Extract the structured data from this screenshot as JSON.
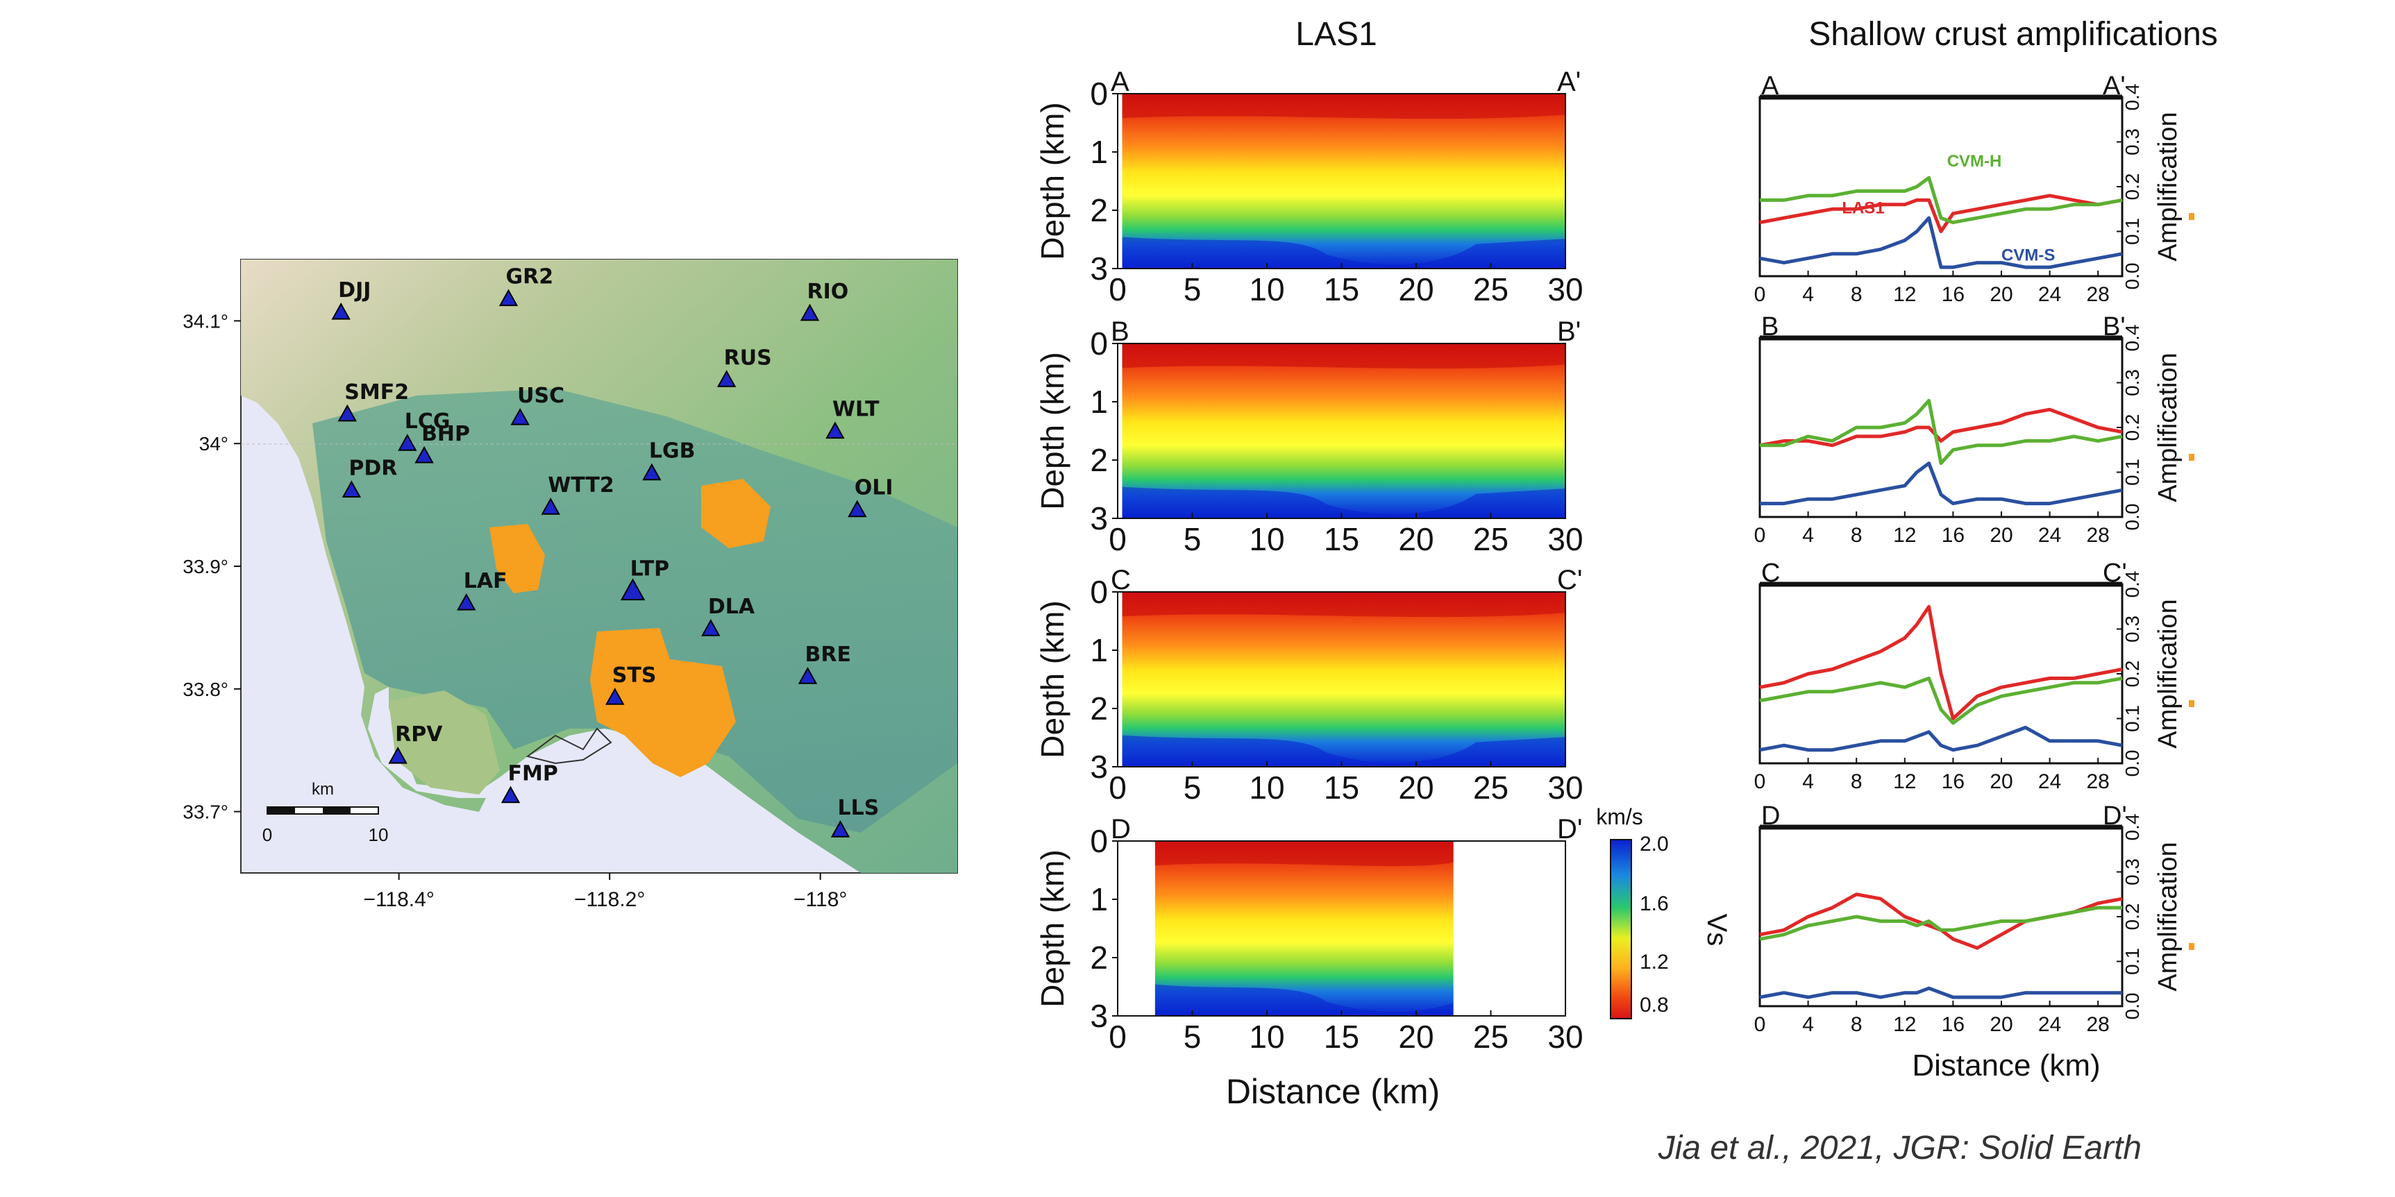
{
  "map": {
    "lat_ticks": [
      "34.1°",
      "34°",
      "33.9°",
      "33.8°",
      "33.7°"
    ],
    "lon_ticks": [
      "−118.4°",
      "−118.2°",
      "−118°"
    ],
    "scale_unit": "km",
    "scale_labels": [
      "0",
      "10"
    ],
    "stations": [
      {
        "name": "DJJ",
        "lon": -118.455,
        "lat": 34.107
      },
      {
        "name": "GR2",
        "lon": -118.296,
        "lat": 34.118
      },
      {
        "name": "RIO",
        "lon": -118.01,
        "lat": 34.106
      },
      {
        "name": "RUS",
        "lon": -118.089,
        "lat": 34.052
      },
      {
        "name": "SMF2",
        "lon": -118.449,
        "lat": 34.024
      },
      {
        "name": "LCG",
        "lon": -118.392,
        "lat": 34.0
      },
      {
        "name": "USC",
        "lon": -118.285,
        "lat": 34.021
      },
      {
        "name": "WLT",
        "lon": -117.986,
        "lat": 34.01
      },
      {
        "name": "BHP",
        "lon": -118.376,
        "lat": 33.99
      },
      {
        "name": "PDR",
        "lon": -118.445,
        "lat": 33.962
      },
      {
        "name": "LGB",
        "lon": -118.16,
        "lat": 33.976
      },
      {
        "name": "WTT2",
        "lon": -118.256,
        "lat": 33.948
      },
      {
        "name": "OLI",
        "lon": -117.965,
        "lat": 33.946
      },
      {
        "name": "LTP",
        "lon": -118.178,
        "lat": 33.88
      },
      {
        "name": "LAF",
        "lon": -118.336,
        "lat": 33.87
      },
      {
        "name": "DLA",
        "lon": -118.104,
        "lat": 33.849
      },
      {
        "name": "BRE",
        "lon": -118.012,
        "lat": 33.81
      },
      {
        "name": "STS",
        "lon": -118.195,
        "lat": 33.793
      },
      {
        "name": "RPV",
        "lon": -118.401,
        "lat": 33.745
      },
      {
        "name": "FMP",
        "lon": -118.294,
        "lat": 33.713
      },
      {
        "name": "LLS",
        "lon": -117.981,
        "lat": 33.685
      }
    ]
  },
  "sections": {
    "title": "LAS1",
    "ylabel": "Depth (km)",
    "xlabel": "Distance (km)",
    "xticks": [
      "0",
      "5",
      "10",
      "15",
      "20",
      "25",
      "30"
    ],
    "yticks": [
      "0",
      "1",
      "2",
      "3"
    ],
    "panels": [
      {
        "left": "A",
        "right": "A'"
      },
      {
        "left": "B",
        "right": "B'"
      },
      {
        "left": "C",
        "right": "C'"
      },
      {
        "left": "D",
        "right": "D'"
      }
    ]
  },
  "colorbar": {
    "unit": "km/s",
    "label": "Vs",
    "ticks": [
      "2.0",
      "1.6",
      "1.2",
      "0.8"
    ]
  },
  "amplification": {
    "title": "Shallow crust amplifications",
    "ylabel": "Amplification",
    "xlabel": "Distance (km)",
    "xticks": [
      "0",
      "4",
      "8",
      "12",
      "16",
      "20",
      "24",
      "28"
    ],
    "yticks": [
      "0.0",
      "0.1",
      "0.2",
      "0.3",
      "0.4"
    ],
    "colors": {
      "LAS1": "#e02828",
      "CVM-H": "#5cb032",
      "CVM-S": "#2a4fa0"
    },
    "legend": [
      "CVM-H",
      "LAS1",
      "CVM-S"
    ]
  },
  "chart_data": [
    {
      "type": "line",
      "panel": "A",
      "x": [
        0,
        2,
        4,
        6,
        8,
        10,
        12,
        13,
        14,
        15,
        16,
        18,
        20,
        22,
        24,
        26,
        28,
        30
      ],
      "series": [
        {
          "name": "LAS1",
          "values": [
            0.12,
            0.13,
            0.14,
            0.15,
            0.15,
            0.16,
            0.16,
            0.17,
            0.17,
            0.1,
            0.14,
            0.15,
            0.16,
            0.17,
            0.18,
            0.17,
            0.16,
            0.17
          ]
        },
        {
          "name": "CVM-H",
          "values": [
            0.17,
            0.17,
            0.18,
            0.18,
            0.19,
            0.19,
            0.19,
            0.2,
            0.22,
            0.13,
            0.12,
            0.13,
            0.14,
            0.15,
            0.15,
            0.16,
            0.16,
            0.17
          ]
        },
        {
          "name": "CVM-S",
          "values": [
            0.04,
            0.03,
            0.04,
            0.05,
            0.05,
            0.06,
            0.08,
            0.1,
            0.13,
            0.02,
            0.02,
            0.03,
            0.03,
            0.02,
            0.02,
            0.03,
            0.04,
            0.05
          ]
        }
      ],
      "xlim": [
        0,
        30
      ],
      "ylim": [
        0,
        0.4
      ]
    },
    {
      "type": "line",
      "panel": "B",
      "x": [
        0,
        2,
        4,
        6,
        8,
        10,
        12,
        13,
        14,
        15,
        16,
        18,
        20,
        22,
        24,
        26,
        28,
        30
      ],
      "series": [
        {
          "name": "LAS1",
          "values": [
            0.16,
            0.17,
            0.17,
            0.16,
            0.18,
            0.18,
            0.19,
            0.2,
            0.2,
            0.17,
            0.19,
            0.2,
            0.21,
            0.23,
            0.24,
            0.22,
            0.2,
            0.19
          ]
        },
        {
          "name": "CVM-H",
          "values": [
            0.16,
            0.16,
            0.18,
            0.17,
            0.2,
            0.2,
            0.21,
            0.23,
            0.26,
            0.12,
            0.15,
            0.16,
            0.16,
            0.17,
            0.17,
            0.18,
            0.17,
            0.18
          ]
        },
        {
          "name": "CVM-S",
          "values": [
            0.03,
            0.03,
            0.04,
            0.04,
            0.05,
            0.06,
            0.07,
            0.1,
            0.12,
            0.05,
            0.03,
            0.04,
            0.04,
            0.03,
            0.03,
            0.04,
            0.05,
            0.06
          ]
        }
      ],
      "xlim": [
        0,
        30
      ],
      "ylim": [
        0,
        0.4
      ]
    },
    {
      "type": "line",
      "panel": "C",
      "x": [
        0,
        2,
        4,
        6,
        8,
        10,
        12,
        13,
        14,
        15,
        16,
        18,
        20,
        22,
        24,
        26,
        28,
        30
      ],
      "series": [
        {
          "name": "LAS1",
          "values": [
            0.17,
            0.18,
            0.2,
            0.21,
            0.23,
            0.25,
            0.28,
            0.31,
            0.35,
            0.2,
            0.1,
            0.15,
            0.17,
            0.18,
            0.19,
            0.19,
            0.2,
            0.21
          ]
        },
        {
          "name": "CVM-H",
          "values": [
            0.14,
            0.15,
            0.16,
            0.16,
            0.17,
            0.18,
            0.17,
            0.18,
            0.19,
            0.12,
            0.09,
            0.13,
            0.15,
            0.16,
            0.17,
            0.18,
            0.18,
            0.19
          ]
        },
        {
          "name": "CVM-S",
          "values": [
            0.03,
            0.04,
            0.03,
            0.03,
            0.04,
            0.05,
            0.05,
            0.06,
            0.07,
            0.04,
            0.03,
            0.04,
            0.06,
            0.08,
            0.05,
            0.05,
            0.05,
            0.04
          ]
        }
      ],
      "xlim": [
        0,
        30
      ],
      "ylim": [
        0,
        0.4
      ]
    },
    {
      "type": "line",
      "panel": "D",
      "x": [
        0,
        2,
        4,
        6,
        8,
        10,
        12,
        13,
        14,
        15,
        16,
        18,
        20,
        22,
        24,
        26,
        28,
        30
      ],
      "series": [
        {
          "name": "LAS1",
          "values": [
            0.16,
            0.17,
            0.2,
            0.22,
            0.25,
            0.24,
            0.2,
            0.19,
            0.18,
            0.17,
            0.15,
            0.13,
            0.16,
            0.19,
            0.2,
            0.21,
            0.23,
            0.24
          ]
        },
        {
          "name": "CVM-H",
          "values": [
            0.15,
            0.16,
            0.18,
            0.19,
            0.2,
            0.19,
            0.19,
            0.18,
            0.19,
            0.17,
            0.17,
            0.18,
            0.19,
            0.19,
            0.2,
            0.21,
            0.22,
            0.22
          ]
        },
        {
          "name": "CVM-S",
          "values": [
            0.02,
            0.03,
            0.02,
            0.03,
            0.03,
            0.02,
            0.03,
            0.03,
            0.04,
            0.03,
            0.02,
            0.02,
            0.02,
            0.03,
            0.03,
            0.03,
            0.03,
            0.03
          ]
        }
      ],
      "xlim": [
        0,
        30
      ],
      "ylim": [
        0,
        0.4
      ]
    }
  ],
  "citation": "Jia et al., 2021, JGR: Solid Earth"
}
